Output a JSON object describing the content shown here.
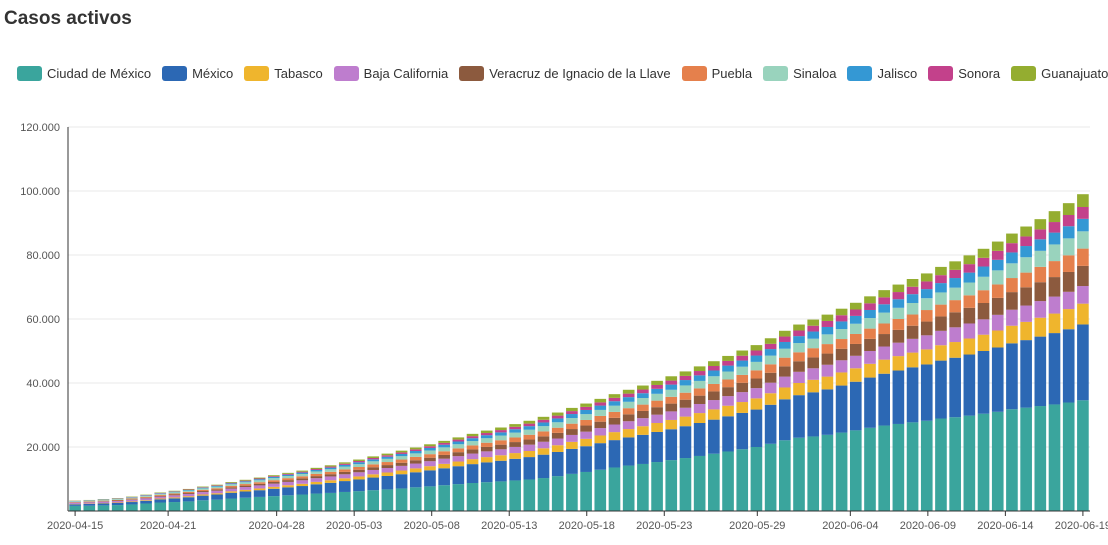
{
  "chart_data": {
    "type": "bar",
    "stacked": true,
    "title": "Casos activos",
    "xlabel": "",
    "ylabel": "",
    "ylim": [
      0,
      120000
    ],
    "yticks": [
      "120.000",
      "100.000",
      "80.000",
      "60.000",
      "40.000",
      "20.000"
    ],
    "ytick_values": [
      120000,
      100000,
      80000,
      60000,
      40000,
      20000
    ],
    "xticks": [
      "2020-04-15",
      "2020-04-21",
      "2020-04-28",
      "2020-05-03",
      "2020-05-08",
      "2020-05-13",
      "2020-05-18",
      "2020-05-23",
      "2020-05-29",
      "2020-06-04",
      "2020-06-09",
      "2020-06-14",
      "2020-06-19"
    ],
    "start_date": "2020-04-15",
    "end_date": "2020-06-19",
    "grid": true,
    "legend_position": "top-left",
    "series": [
      {
        "name": "Ciudad de México",
        "color": "#3aa59d",
        "values": [
          1600,
          1650,
          1750,
          1850,
          2050,
          2350,
          2650,
          2800,
          3000,
          3350,
          3550,
          3900,
          4150,
          4400,
          4650,
          4900,
          5150,
          5450,
          5650,
          5950,
          6200,
          6500,
          6750,
          7050,
          7400,
          7700,
          8050,
          8400,
          8750,
          9000,
          9250,
          9550,
          9850,
          10300,
          10900,
          11600,
          12200,
          12900,
          13600,
          14200,
          14700,
          15300,
          15900,
          16550,
          17200,
          17900,
          18600,
          19300,
          20000,
          21000,
          22100,
          22900,
          23300,
          23800,
          24500,
          25200,
          26000,
          26700,
          27200,
          27700,
          28200,
          28900,
          29300,
          29800,
          30400,
          31000,
          31800,
          32300,
          32800,
          33300,
          33900,
          34600
        ]
      },
      {
        "name": "México",
        "color": "#2c68b4",
        "values": [
          500,
          550,
          600,
          650,
          750,
          850,
          1000,
          1150,
          1300,
          1450,
          1600,
          1800,
          1950,
          2100,
          2300,
          2500,
          2650,
          2900,
          3150,
          3400,
          3650,
          3950,
          4200,
          4450,
          4700,
          5000,
          5300,
          5600,
          5900,
          6200,
          6450,
          6750,
          7000,
          7300,
          7550,
          7800,
          8050,
          8300,
          8550,
          8800,
          9100,
          9400,
          9650,
          9950,
          10300,
          10650,
          11000,
          11350,
          11700,
          12200,
          12800,
          13300,
          13800,
          14200,
          14700,
          15200,
          15700,
          16200,
          16700,
          17200,
          17600,
          18100,
          18600,
          19100,
          19600,
          20100,
          20600,
          21100,
          21700,
          22300,
          22900,
          23700
        ]
      },
      {
        "name": "Tabasco",
        "color": "#efb52d",
        "values": [
          100,
          110,
          130,
          150,
          180,
          200,
          250,
          300,
          330,
          370,
          400,
          450,
          500,
          550,
          600,
          650,
          700,
          750,
          800,
          870,
          950,
          1020,
          1080,
          1150,
          1220,
          1300,
          1380,
          1460,
          1550,
          1640,
          1720,
          1800,
          1900,
          2000,
          2100,
          2200,
          2300,
          2400,
          2500,
          2600,
          2700,
          2800,
          2900,
          3000,
          3100,
          3200,
          3300,
          3400,
          3500,
          3600,
          3700,
          3800,
          3900,
          4000,
          4100,
          4200,
          4300,
          4400,
          4500,
          4600,
          4700,
          4800,
          4900,
          5000,
          5100,
          5300,
          5500,
          5700,
          5900,
          6100,
          6300,
          6500
        ]
      },
      {
        "name": "Baja California",
        "color": "#be7dce",
        "values": [
          400,
          420,
          450,
          480,
          520,
          560,
          600,
          650,
          700,
          750,
          800,
          850,
          900,
          950,
          1000,
          1050,
          1100,
          1150,
          1200,
          1250,
          1300,
          1350,
          1400,
          1450,
          1500,
          1560,
          1620,
          1680,
          1740,
          1800,
          1860,
          1920,
          1980,
          2040,
          2100,
          2170,
          2240,
          2310,
          2380,
          2450,
          2520,
          2600,
          2680,
          2760,
          2840,
          2920,
          3000,
          3100,
          3200,
          3300,
          3400,
          3500,
          3600,
          3700,
          3800,
          3900,
          4000,
          4100,
          4200,
          4300,
          4400,
          4500,
          4600,
          4700,
          4800,
          4900,
          5000,
          5100,
          5200,
          5300,
          5400,
          5500
        ]
      },
      {
        "name": "Veracruz de Ignacio de la Llave",
        "color": "#8c5a3e",
        "values": [
          100,
          110,
          130,
          150,
          170,
          200,
          230,
          260,
          290,
          320,
          350,
          390,
          430,
          470,
          510,
          550,
          600,
          650,
          700,
          750,
          800,
          860,
          920,
          980,
          1040,
          1100,
          1170,
          1240,
          1310,
          1380,
          1450,
          1520,
          1600,
          1680,
          1760,
          1840,
          1920,
          2000,
          2080,
          2160,
          2250,
          2340,
          2430,
          2520,
          2610,
          2700,
          2800,
          2900,
          3000,
          3100,
          3200,
          3300,
          3400,
          3500,
          3600,
          3700,
          3800,
          3900,
          4000,
          4100,
          4300,
          4500,
          4700,
          4900,
          5100,
          5300,
          5500,
          5700,
          5900,
          6100,
          6200,
          6300
        ]
      },
      {
        "name": "Puebla",
        "color": "#e5804c",
        "values": [
          150,
          160,
          180,
          200,
          230,
          260,
          290,
          320,
          350,
          380,
          410,
          450,
          490,
          530,
          570,
          610,
          650,
          700,
          750,
          800,
          850,
          900,
          950,
          1000,
          1050,
          1100,
          1150,
          1200,
          1260,
          1320,
          1380,
          1440,
          1500,
          1560,
          1620,
          1680,
          1740,
          1800,
          1860,
          1920,
          1980,
          2050,
          2120,
          2190,
          2260,
          2330,
          2400,
          2480,
          2560,
          2640,
          2720,
          2800,
          2880,
          2960,
          3040,
          3120,
          3200,
          3300,
          3400,
          3500,
          3600,
          3700,
          3800,
          3900,
          4000,
          4200,
          4400,
          4600,
          4800,
          5000,
          5200,
          5400
        ]
      },
      {
        "name": "Sinaloa",
        "color": "#99d3bd",
        "values": [
          200,
          210,
          230,
          250,
          280,
          310,
          340,
          370,
          400,
          440,
          480,
          520,
          560,
          600,
          640,
          680,
          720,
          760,
          800,
          850,
          900,
          950,
          1000,
          1050,
          1100,
          1160,
          1220,
          1280,
          1340,
          1400,
          1460,
          1520,
          1580,
          1640,
          1700,
          1760,
          1820,
          1880,
          1940,
          2000,
          2060,
          2130,
          2200,
          2270,
          2340,
          2410,
          2480,
          2560,
          2640,
          2720,
          2800,
          2880,
          2960,
          3040,
          3120,
          3200,
          3300,
          3400,
          3500,
          3600,
          3700,
          3800,
          3900,
          4000,
          4200,
          4400,
          4600,
          4800,
          5000,
          5200,
          5300,
          5400
        ]
      },
      {
        "name": "Jalisco",
        "color": "#3498d4",
        "values": [
          80,
          90,
          100,
          110,
          130,
          150,
          170,
          190,
          210,
          230,
          250,
          280,
          310,
          340,
          370,
          400,
          430,
          460,
          500,
          540,
          580,
          620,
          660,
          700,
          740,
          780,
          820,
          860,
          900,
          950,
          1000,
          1050,
          1100,
          1150,
          1200,
          1250,
          1300,
          1350,
          1400,
          1450,
          1500,
          1560,
          1620,
          1680,
          1740,
          1800,
          1860,
          1920,
          1980,
          2040,
          2100,
          2170,
          2240,
          2310,
          2380,
          2450,
          2520,
          2600,
          2680,
          2760,
          2840,
          2920,
          3000,
          3100,
          3200,
          3300,
          3400,
          3500,
          3600,
          3700,
          3800,
          3900
        ]
      },
      {
        "name": "Sonora",
        "color": "#c3418b",
        "values": [
          50,
          55,
          60,
          70,
          80,
          90,
          100,
          115,
          130,
          145,
          160,
          180,
          200,
          220,
          240,
          260,
          280,
          300,
          330,
          360,
          390,
          420,
          450,
          480,
          510,
          540,
          570,
          600,
          640,
          680,
          720,
          760,
          800,
          840,
          880,
          920,
          960,
          1000,
          1050,
          1100,
          1150,
          1200,
          1250,
          1300,
          1350,
          1400,
          1460,
          1520,
          1580,
          1640,
          1700,
          1760,
          1820,
          1880,
          1940,
          2000,
          2080,
          2160,
          2240,
          2320,
          2400,
          2480,
          2560,
          2640,
          2720,
          2800,
          2900,
          3000,
          3100,
          3300,
          3500,
          3700
        ]
      },
      {
        "name": "Guanajuato",
        "color": "#94ad30",
        "values": [
          90,
          95,
          100,
          110,
          120,
          135,
          150,
          165,
          180,
          200,
          220,
          240,
          260,
          280,
          300,
          320,
          340,
          370,
          400,
          430,
          460,
          490,
          520,
          550,
          580,
          610,
          640,
          680,
          720,
          760,
          800,
          840,
          880,
          920,
          960,
          1000,
          1050,
          1100,
          1150,
          1200,
          1250,
          1300,
          1350,
          1400,
          1450,
          1500,
          1560,
          1620,
          1680,
          1740,
          1800,
          1860,
          1920,
          1980,
          2040,
          2100,
          2180,
          2260,
          2340,
          2420,
          2500,
          2580,
          2660,
          2740,
          2820,
          2900,
          3000,
          3100,
          3200,
          3400,
          3700,
          4000
        ]
      }
    ]
  }
}
